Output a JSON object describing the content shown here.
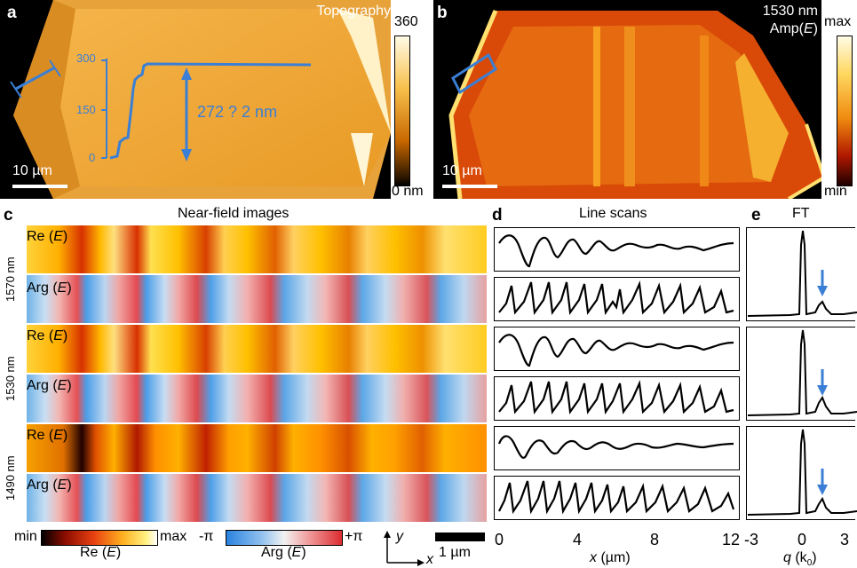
{
  "panels": {
    "a": {
      "label": "a",
      "title": "Topography",
      "scalebar": "10 µm",
      "colorbar": {
        "max": "360",
        "min": "0 nm"
      },
      "inset_ticks": [
        "300",
        "150",
        "0"
      ],
      "height_text": "272 ? 2 nm"
    },
    "b": {
      "label": "b",
      "title_line1": "1530 nm",
      "title_line2_pre": "Amp(",
      "title_line2_var": "E",
      "title_line2_post": ")",
      "scalebar": "10 µm",
      "colorbar": {
        "max": "max",
        "min": "min"
      }
    },
    "c": {
      "label": "c",
      "title": "Near-field images",
      "wavelengths": [
        "1570 nm",
        "1530 nm",
        "1490 nm"
      ],
      "re_label_pre": "Re (",
      "arg_label_pre": "Arg (",
      "var": "E",
      "label_post": ")",
      "cbar_re": {
        "min": "min",
        "max": "max",
        "label": "Re (E)"
      },
      "cbar_arg": {
        "min": "-π",
        "max": "+π",
        "label": "Arg (E)"
      },
      "axis_y": "y",
      "axis_x": "x",
      "scalebar": "1 µm"
    },
    "d": {
      "label": "d",
      "title": "Line scans",
      "xticks": [
        "0",
        "4",
        "8",
        "12"
      ],
      "xlabel_var": "x",
      "xlabel_unit": " (µm)"
    },
    "e": {
      "label": "e",
      "title": "FT",
      "xticks": [
        "-3",
        "0",
        "3"
      ],
      "xlabel_var": "q",
      "xlabel_unit_pre": " (k",
      "xlabel_sub": "0",
      "xlabel_unit_post": ")"
    }
  },
  "colors": {
    "accent_blue": "#3a7fd5",
    "topo": "#f2ad3a",
    "amp": "#e05a10"
  }
}
